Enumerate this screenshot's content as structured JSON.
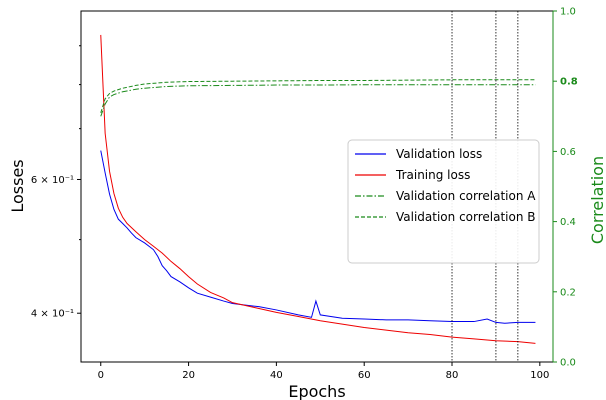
{
  "chart_data": {
    "type": "line",
    "xlabel": "Epochs",
    "ylabel": "Losses",
    "y2label": "Correlation",
    "x_ticks": [
      0,
      20,
      40,
      60,
      80,
      100
    ],
    "x_tick_labels": [
      "0",
      "20",
      "40",
      "60",
      "80",
      "100"
    ],
    "xlim": [
      -4.5,
      103
    ],
    "ylim": [
      0.345,
      1.0
    ],
    "y_scale": "log",
    "y_ticks": [
      0.4,
      0.6
    ],
    "y_tick_labels": [
      "4 × 10⁻¹",
      "6 × 10⁻¹"
    ],
    "y2lim": [
      0.0,
      1.0
    ],
    "y2_ticks": [
      0.0,
      0.2,
      0.4,
      0.6,
      0.8,
      1.0
    ],
    "y2_tick_labels": [
      "0.0",
      "0.2",
      "0.4",
      "0.6",
      "0.8",
      "1.0"
    ],
    "y2_highlight_tick": "0.8",
    "vertical_lines": [
      80,
      90,
      95
    ],
    "grid": false,
    "legend_position": "center-right",
    "series": [
      {
        "name": "Validation loss",
        "axis": "left",
        "color": "#0000ee",
        "style": "solid",
        "x": [
          0,
          1,
          2,
          3,
          4,
          5,
          6,
          7,
          8,
          10,
          12,
          13,
          14,
          15,
          16,
          18,
          20,
          22,
          25,
          28,
          30,
          33,
          36,
          40,
          45,
          48,
          49,
          50,
          55,
          60,
          65,
          70,
          75,
          80,
          85,
          88,
          90,
          92,
          95,
          99
        ],
        "y": [
          0.655,
          0.612,
          0.574,
          0.548,
          0.532,
          0.525,
          0.518,
          0.51,
          0.503,
          0.495,
          0.485,
          0.475,
          0.462,
          0.455,
          0.447,
          0.44,
          0.432,
          0.425,
          0.42,
          0.415,
          0.412,
          0.41,
          0.408,
          0.404,
          0.398,
          0.395,
          0.415,
          0.398,
          0.394,
          0.393,
          0.392,
          0.392,
          0.391,
          0.39,
          0.39,
          0.393,
          0.389,
          0.388,
          0.389,
          0.389
        ]
      },
      {
        "name": "Training loss",
        "axis": "left",
        "color": "#ee0000",
        "style": "solid",
        "x": [
          0,
          1,
          2,
          3,
          4,
          5,
          6,
          8,
          10,
          12,
          14,
          16,
          18,
          20,
          22,
          25,
          28,
          30,
          35,
          40,
          45,
          50,
          55,
          60,
          65,
          70,
          75,
          80,
          85,
          90,
          95,
          99
        ],
        "y": [
          0.93,
          0.69,
          0.615,
          0.575,
          0.55,
          0.535,
          0.525,
          0.512,
          0.5,
          0.49,
          0.48,
          0.468,
          0.458,
          0.447,
          0.437,
          0.426,
          0.419,
          0.413,
          0.407,
          0.401,
          0.396,
          0.391,
          0.387,
          0.383,
          0.38,
          0.377,
          0.375,
          0.372,
          0.37,
          0.368,
          0.367,
          0.365
        ]
      },
      {
        "name": "Validation correlation A",
        "axis": "right",
        "color": "#1a8a1a",
        "style": "dashdot",
        "x": [
          0,
          1,
          2,
          3,
          5,
          8,
          10,
          15,
          20,
          30,
          40,
          50,
          60,
          70,
          80,
          90,
          99
        ],
        "y": [
          0.7,
          0.735,
          0.755,
          0.762,
          0.77,
          0.777,
          0.78,
          0.785,
          0.787,
          0.788,
          0.789,
          0.789,
          0.79,
          0.79,
          0.79,
          0.79,
          0.79
        ]
      },
      {
        "name": "Validation correlation B",
        "axis": "right",
        "color": "#1a8a1a",
        "style": "dashed",
        "x": [
          0,
          1,
          2,
          3,
          5,
          8,
          10,
          15,
          20,
          30,
          40,
          50,
          60,
          70,
          80,
          90,
          99
        ],
        "y": [
          0.71,
          0.75,
          0.765,
          0.772,
          0.78,
          0.788,
          0.792,
          0.797,
          0.799,
          0.8,
          0.801,
          0.802,
          0.802,
          0.803,
          0.804,
          0.804,
          0.804
        ]
      }
    ]
  }
}
